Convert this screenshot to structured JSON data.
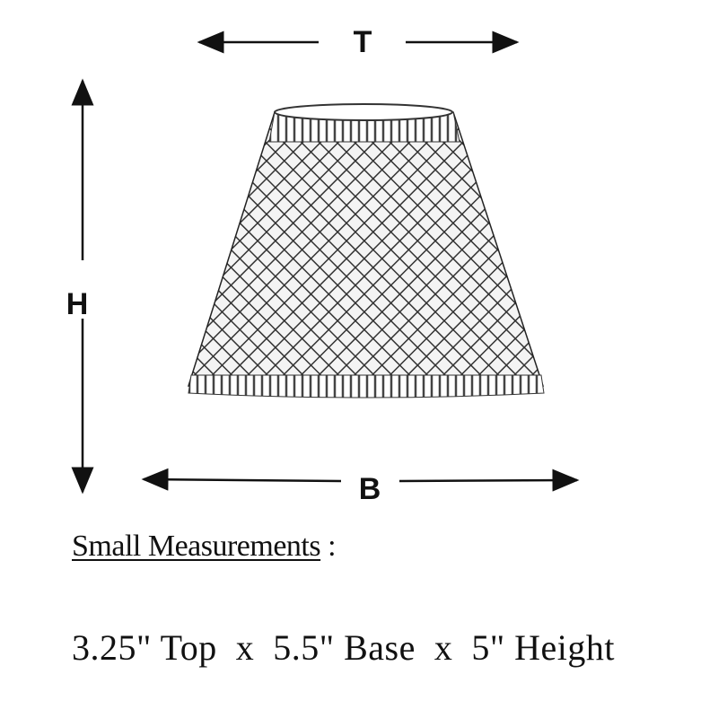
{
  "labels": {
    "top": "T",
    "height": "H",
    "base": "B"
  },
  "heading": {
    "title": "Small Measurements",
    "suffix": " :"
  },
  "measurements": "3.25\" Top  x  5.5\" Base  x  5\" Height"
}
